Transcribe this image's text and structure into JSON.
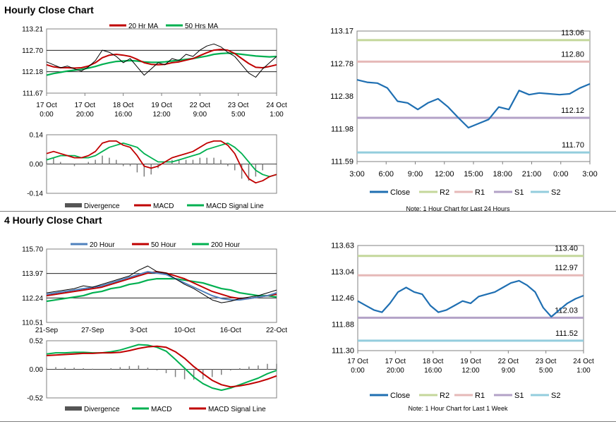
{
  "colors": {
    "ma_red": "#c00000",
    "ma_green": "#00b050",
    "ma_blue": "#4f81bd",
    "close_blue": "#1f6fb2",
    "r2": "#c4d79b",
    "r1": "#e6b9b8",
    "s1": "#b3a2c7",
    "s2": "#93cddd",
    "grey": "#7f7f7f"
  },
  "sections": {
    "hourly_title": "Hourly Close Chart",
    "four_hourly_title": "4 Hourly Close Chart"
  },
  "chart_data": [
    {
      "id": "hourly_price",
      "type": "line",
      "title": "",
      "yticks": [
        "113.21",
        "112.70",
        "112.18",
        "111.67"
      ],
      "ylim": [
        111.67,
        113.21
      ],
      "xticks": [
        {
          "line1": "17 Oct",
          "line2": "0:00"
        },
        {
          "line1": "17 Oct",
          "line2": "20:00"
        },
        {
          "line1": "18 Oct",
          "line2": "16:00"
        },
        {
          "line1": "19 Oct",
          "line2": "12:00"
        },
        {
          "line1": "22 Oct",
          "line2": "9:00"
        },
        {
          "line1": "23 Oct",
          "line2": "5:00"
        },
        {
          "line1": "24 Oct",
          "line2": "1:00"
        }
      ],
      "legend": [
        "20 Hr MA",
        "50 Hrs MA"
      ],
      "legend_position": "top",
      "series": [
        {
          "name": "Close",
          "values": [
            112.42,
            112.35,
            112.28,
            112.32,
            112.25,
            112.2,
            112.3,
            112.45,
            112.7,
            112.65,
            112.55,
            112.4,
            112.5,
            112.3,
            112.1,
            112.25,
            112.4,
            112.35,
            112.5,
            112.45,
            112.6,
            112.55,
            112.7,
            112.8,
            112.85,
            112.78,
            112.65,
            112.55,
            112.35,
            112.15,
            112.05,
            112.25,
            112.4,
            112.55
          ]
        },
        {
          "name": "20 Hr MA",
          "values": [
            112.35,
            112.3,
            112.28,
            112.28,
            112.27,
            112.28,
            112.32,
            112.4,
            112.52,
            112.58,
            112.6,
            112.58,
            112.55,
            112.48,
            112.4,
            112.36,
            112.35,
            112.36,
            112.4,
            112.42,
            112.46,
            112.5,
            112.57,
            112.64,
            112.7,
            112.72,
            112.7,
            112.62,
            112.5,
            112.38,
            112.29,
            112.28,
            112.31,
            112.35
          ]
        },
        {
          "name": "50 Hrs MA",
          "values": [
            112.1,
            112.14,
            112.17,
            112.2,
            112.22,
            112.24,
            112.27,
            112.31,
            112.36,
            112.4,
            112.43,
            112.44,
            112.45,
            112.44,
            112.42,
            112.41,
            112.41,
            112.42,
            112.44,
            112.46,
            112.48,
            112.5,
            112.53,
            112.56,
            112.6,
            112.62,
            112.63,
            112.62,
            112.6,
            112.58,
            112.56,
            112.55,
            112.54,
            112.55
          ]
        }
      ]
    },
    {
      "id": "hourly_macd",
      "type": "line",
      "yticks": [
        "0.14",
        "0.00",
        "-0.14"
      ],
      "ylim": [
        -0.14,
        0.14
      ],
      "legend": [
        "Divergence",
        "MACD",
        "MACD Signal Line"
      ],
      "legend_position": "bottom",
      "series": [
        {
          "name": "MACD",
          "values": [
            0.05,
            0.06,
            0.05,
            0.04,
            0.03,
            0.03,
            0.04,
            0.06,
            0.1,
            0.11,
            0.11,
            0.09,
            0.08,
            0.04,
            -0.01,
            -0.02,
            -0.01,
            0.01,
            0.03,
            0.04,
            0.05,
            0.06,
            0.08,
            0.1,
            0.11,
            0.11,
            0.09,
            0.05,
            -0.02,
            -0.07,
            -0.09,
            -0.08,
            -0.06,
            -0.05
          ]
        },
        {
          "name": "MACD Signal Line",
          "values": [
            0.02,
            0.03,
            0.04,
            0.04,
            0.04,
            0.03,
            0.03,
            0.04,
            0.06,
            0.08,
            0.09,
            0.1,
            0.09,
            0.08,
            0.05,
            0.03,
            0.01,
            0.01,
            0.01,
            0.02,
            0.03,
            0.04,
            0.05,
            0.07,
            0.08,
            0.09,
            0.1,
            0.08,
            0.05,
            0.01,
            -0.03,
            -0.05,
            -0.06,
            -0.05
          ]
        },
        {
          "name": "Divergence",
          "values": [
            0.03,
            0.03,
            0.01,
            0.0,
            -0.01,
            0.0,
            0.01,
            0.02,
            0.04,
            0.03,
            0.02,
            -0.01,
            -0.01,
            -0.04,
            -0.06,
            -0.05,
            -0.02,
            0.0,
            0.02,
            0.02,
            0.02,
            0.02,
            0.03,
            0.03,
            0.03,
            0.02,
            -0.01,
            -0.03,
            -0.07,
            -0.08,
            -0.06,
            -0.03,
            0.0,
            0.0
          ]
        }
      ]
    },
    {
      "id": "hourly_pivot",
      "type": "line",
      "yticks": [
        "113.17",
        "112.78",
        "112.38",
        "111.98",
        "111.59"
      ],
      "ylim": [
        111.59,
        113.17
      ],
      "xticks": [
        "3:00",
        "6:00",
        "9:00",
        "12:00",
        "15:00",
        "18:00",
        "21:00",
        "0:00",
        "3:00"
      ],
      "levels": [
        {
          "name": "R2",
          "value": 113.06,
          "label": "113.06"
        },
        {
          "name": "R1",
          "value": 112.8,
          "label": "112.80"
        },
        {
          "name": "S1",
          "value": 112.12,
          "label": "112.12"
        },
        {
          "name": "S2",
          "value": 111.7,
          "label": "111.70"
        }
      ],
      "series": [
        {
          "name": "Close",
          "values": [
            112.58,
            112.55,
            112.54,
            112.48,
            112.32,
            112.3,
            112.22,
            112.3,
            112.35,
            112.25,
            112.12,
            112.0,
            112.05,
            112.1,
            112.25,
            112.22,
            112.45,
            112.4,
            112.42,
            112.41,
            112.4,
            112.41,
            112.48,
            112.53
          ]
        }
      ],
      "legend": [
        "Close",
        "R2",
        "R1",
        "S1",
        "S2"
      ],
      "note": "Note: 1 Hour Chart for Last 24 Hours"
    },
    {
      "id": "four_hourly_price",
      "type": "line",
      "yticks": [
        "115.70",
        "113.97",
        "112.24",
        "110.51"
      ],
      "ylim": [
        110.51,
        115.7
      ],
      "xticks": [
        "21-Sep",
        "27-Sep",
        "3-Oct",
        "10-Oct",
        "16-Oct",
        "22-Oct"
      ],
      "legend": [
        "20 Hour",
        "50 Hour",
        "200 Hour"
      ],
      "legend_position": "top",
      "series": [
        {
          "name": "Close",
          "values": [
            112.6,
            112.7,
            112.8,
            112.9,
            113.1,
            113.0,
            113.2,
            113.4,
            113.6,
            113.8,
            114.2,
            114.5,
            114.1,
            114.0,
            113.6,
            113.2,
            112.9,
            112.5,
            112.1,
            111.9,
            112.0,
            112.2,
            112.3,
            112.4,
            112.6,
            112.8
          ]
        },
        {
          "name": "20 Hour",
          "values": [
            112.5,
            112.6,
            112.7,
            112.8,
            112.9,
            113.0,
            113.1,
            113.3,
            113.5,
            113.7,
            113.9,
            114.1,
            114.0,
            113.9,
            113.6,
            113.3,
            113.0,
            112.7,
            112.4,
            112.2,
            112.1,
            112.1,
            112.2,
            112.3,
            112.4,
            112.6
          ]
        },
        {
          "name": "50 Hour",
          "values": [
            112.4,
            112.5,
            112.6,
            112.7,
            112.8,
            112.9,
            113.0,
            113.2,
            113.4,
            113.6,
            113.8,
            114.0,
            114.1,
            114.0,
            113.8,
            113.6,
            113.3,
            113.0,
            112.7,
            112.5,
            112.3,
            112.2,
            112.2,
            112.3,
            112.4,
            112.5
          ]
        },
        {
          "name": "200 Hour",
          "values": [
            112.0,
            112.1,
            112.2,
            112.3,
            112.4,
            112.6,
            112.7,
            112.9,
            113.0,
            113.2,
            113.3,
            113.5,
            113.6,
            113.6,
            113.6,
            113.5,
            113.4,
            113.3,
            113.1,
            112.9,
            112.8,
            112.6,
            112.5,
            112.4,
            112.4,
            112.3
          ]
        }
      ]
    },
    {
      "id": "four_hourly_macd",
      "type": "line",
      "yticks": [
        "0.52",
        "0.00",
        "-0.52"
      ],
      "ylim": [
        -0.52,
        0.52
      ],
      "legend": [
        "Divergence",
        "MACD",
        "MACD Signal Line"
      ],
      "legend_position": "bottom",
      "series": [
        {
          "name": "MACD",
          "values": [
            0.28,
            0.3,
            0.3,
            0.31,
            0.31,
            0.3,
            0.3,
            0.32,
            0.35,
            0.4,
            0.45,
            0.44,
            0.4,
            0.33,
            0.18,
            0.02,
            -0.14,
            -0.26,
            -0.34,
            -0.38,
            -0.34,
            -0.28,
            -0.22,
            -0.16,
            -0.08,
            -0.02
          ]
        },
        {
          "name": "MACD Signal Line",
          "values": [
            0.25,
            0.26,
            0.27,
            0.28,
            0.29,
            0.29,
            0.3,
            0.3,
            0.31,
            0.34,
            0.38,
            0.41,
            0.42,
            0.4,
            0.32,
            0.2,
            0.05,
            -0.08,
            -0.2,
            -0.28,
            -0.32,
            -0.3,
            -0.27,
            -0.23,
            -0.18,
            -0.12
          ]
        },
        {
          "name": "Divergence",
          "values": [
            0.03,
            0.04,
            0.03,
            0.03,
            0.02,
            0.01,
            0.0,
            0.02,
            0.04,
            0.06,
            0.07,
            0.03,
            -0.02,
            -0.07,
            -0.14,
            -0.18,
            -0.19,
            -0.18,
            -0.14,
            -0.1,
            -0.02,
            0.02,
            0.05,
            0.07,
            0.1,
            0.1
          ]
        }
      ]
    },
    {
      "id": "four_hourly_pivot",
      "type": "line",
      "yticks": [
        "113.63",
        "113.04",
        "112.46",
        "111.88",
        "111.30"
      ],
      "ylim": [
        111.3,
        113.63
      ],
      "xticks": [
        {
          "line1": "17 Oct",
          "line2": "0:00"
        },
        {
          "line1": "17 Oct",
          "line2": "20:00"
        },
        {
          "line1": "18 Oct",
          "line2": "16:00"
        },
        {
          "line1": "19 Oct",
          "line2": "12:00"
        },
        {
          "line1": "22 Oct",
          "line2": "9:00"
        },
        {
          "line1": "23 Oct",
          "line2": "5:00"
        },
        {
          "line1": "24 Oct",
          "line2": "1:00"
        }
      ],
      "levels": [
        {
          "name": "R2",
          "value": 113.4,
          "label": "113.40"
        },
        {
          "name": "R1",
          "value": 112.97,
          "label": "112.97"
        },
        {
          "name": "S1",
          "value": 112.03,
          "label": "112.03"
        },
        {
          "name": "S2",
          "value": 111.52,
          "label": "111.52"
        }
      ],
      "series": [
        {
          "name": "Close",
          "values": [
            112.4,
            112.3,
            112.2,
            112.15,
            112.35,
            112.6,
            112.7,
            112.6,
            112.55,
            112.3,
            112.15,
            112.2,
            112.3,
            112.4,
            112.35,
            112.5,
            112.55,
            112.6,
            112.7,
            112.8,
            112.85,
            112.75,
            112.6,
            112.25,
            112.05,
            112.2,
            112.35,
            112.45,
            112.52
          ]
        }
      ],
      "legend": [
        "Close",
        "R2",
        "R1",
        "S1",
        "S2"
      ],
      "note": "Note: 1 Hour Chart for Last 1 Week"
    }
  ]
}
